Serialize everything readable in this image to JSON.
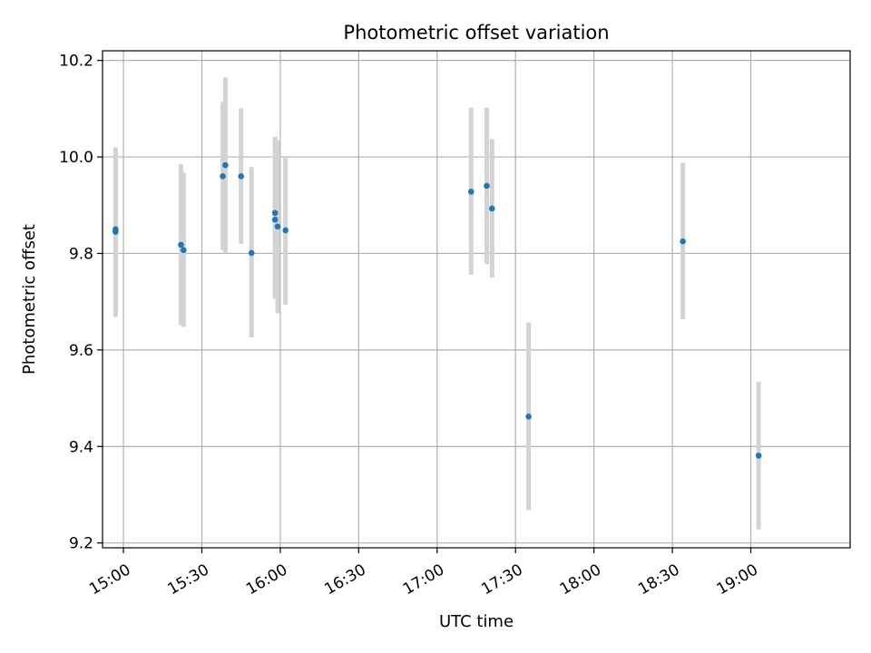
{
  "chart_data": {
    "type": "scatter",
    "title": "Photometric offset variation",
    "xlabel": "UTC time",
    "ylabel": "Photometric offset",
    "x_unit": "UTC time (HH:MM)",
    "xlim": [
      "14:52",
      "19:38"
    ],
    "ylim": [
      9.19,
      10.22
    ],
    "x_ticks": [
      "15:00",
      "15:30",
      "16:00",
      "16:30",
      "17:00",
      "17:30",
      "18:00",
      "18:30",
      "19:00"
    ],
    "y_ticks": [
      9.2,
      9.4,
      9.6,
      9.8,
      10.0,
      10.2
    ],
    "y_tick_labels": [
      "9.2",
      "9.4",
      "9.6",
      "9.8",
      "10.0",
      "10.2"
    ],
    "grid": true,
    "colors": {
      "points": "#1f77b4",
      "errorbars": "#d3d3d3",
      "grid": "#b0b0b0"
    },
    "series": [
      {
        "points": [
          {
            "x": "14:57",
            "y": 9.85,
            "err_low": 9.68,
            "err_high": 10.02
          },
          {
            "x": "14:57",
            "y": 9.845,
            "err_low": 9.668,
            "err_high": 10.0
          },
          {
            "x": "15:22",
            "y": 9.818,
            "err_low": 9.652,
            "err_high": 9.985
          },
          {
            "x": "15:23",
            "y": 9.807,
            "err_low": 9.648,
            "err_high": 9.967
          },
          {
            "x": "15:38",
            "y": 9.96,
            "err_low": 9.807,
            "err_high": 10.114
          },
          {
            "x": "15:39",
            "y": 9.983,
            "err_low": 9.8,
            "err_high": 10.165
          },
          {
            "x": "15:45",
            "y": 9.96,
            "err_low": 9.82,
            "err_high": 10.101
          },
          {
            "x": "15:49",
            "y": 9.801,
            "err_low": 9.626,
            "err_high": 9.979
          },
          {
            "x": "15:58",
            "y": 9.884,
            "err_low": 9.725,
            "err_high": 10.042
          },
          {
            "x": "15:58",
            "y": 9.87,
            "err_low": 9.706,
            "err_high": 10.035
          },
          {
            "x": "15:59",
            "y": 9.856,
            "err_low": 9.676,
            "err_high": 10.035
          },
          {
            "x": "16:02",
            "y": 9.848,
            "err_low": 9.694,
            "err_high": 10.002
          },
          {
            "x": "17:13",
            "y": 9.928,
            "err_low": 9.756,
            "err_high": 10.102
          },
          {
            "x": "17:19",
            "y": 9.94,
            "err_low": 9.778,
            "err_high": 10.102
          },
          {
            "x": "17:21",
            "y": 9.893,
            "err_low": 9.75,
            "err_high": 10.037
          },
          {
            "x": "17:35",
            "y": 9.462,
            "err_low": 9.268,
            "err_high": 9.657
          },
          {
            "x": "18:34",
            "y": 9.825,
            "err_low": 9.664,
            "err_high": 9.988
          },
          {
            "x": "19:03",
            "y": 9.381,
            "err_low": 9.228,
            "err_high": 9.534
          }
        ]
      }
    ]
  }
}
